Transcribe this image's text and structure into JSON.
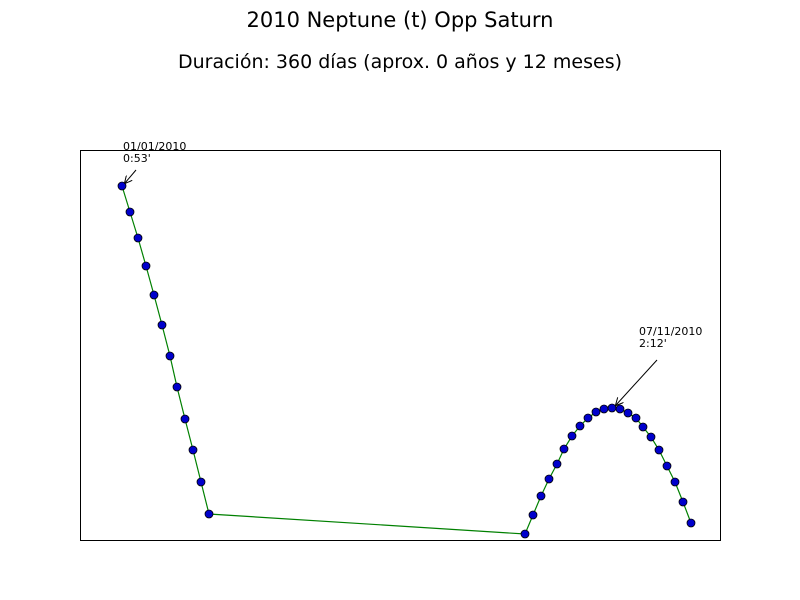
{
  "chart_data": {
    "type": "line",
    "title": "2010 Neptune (t) Opp Saturn",
    "subtitle": "Duración: 360 días (aprox. 0 años y 12 meses)",
    "xlabel": "",
    "ylabel": "",
    "xlim": [
      0,
      640
    ],
    "ylim": [
      0,
      390
    ],
    "grid": false,
    "series": [
      {
        "line_color": "#008000",
        "marker_color": "#0000cc",
        "x": [
          42,
          50,
          58,
          66,
          74,
          82,
          90,
          97,
          105,
          113,
          121,
          129,
          445,
          453,
          461,
          469,
          477,
          484,
          492,
          500,
          508,
          516,
          524,
          532,
          540,
          548,
          556,
          563,
          571,
          579,
          587,
          595,
          603,
          611
        ],
        "y": [
          354,
          328,
          302,
          274,
          245,
          215,
          184,
          153,
          121,
          90,
          58,
          26,
          6,
          25,
          44,
          61,
          76,
          91,
          104,
          114,
          122,
          128,
          131,
          132,
          131,
          127,
          122,
          113,
          103,
          90,
          74,
          58,
          38,
          17
        ]
      }
    ],
    "annotations": [
      {
        "lines": [
          "01/01/2010",
          "0:53'"
        ],
        "x": 42,
        "y": 354
      },
      {
        "lines": [
          "07/11/2010",
          "2:12'"
        ],
        "x": 533,
        "y": 132
      }
    ]
  }
}
